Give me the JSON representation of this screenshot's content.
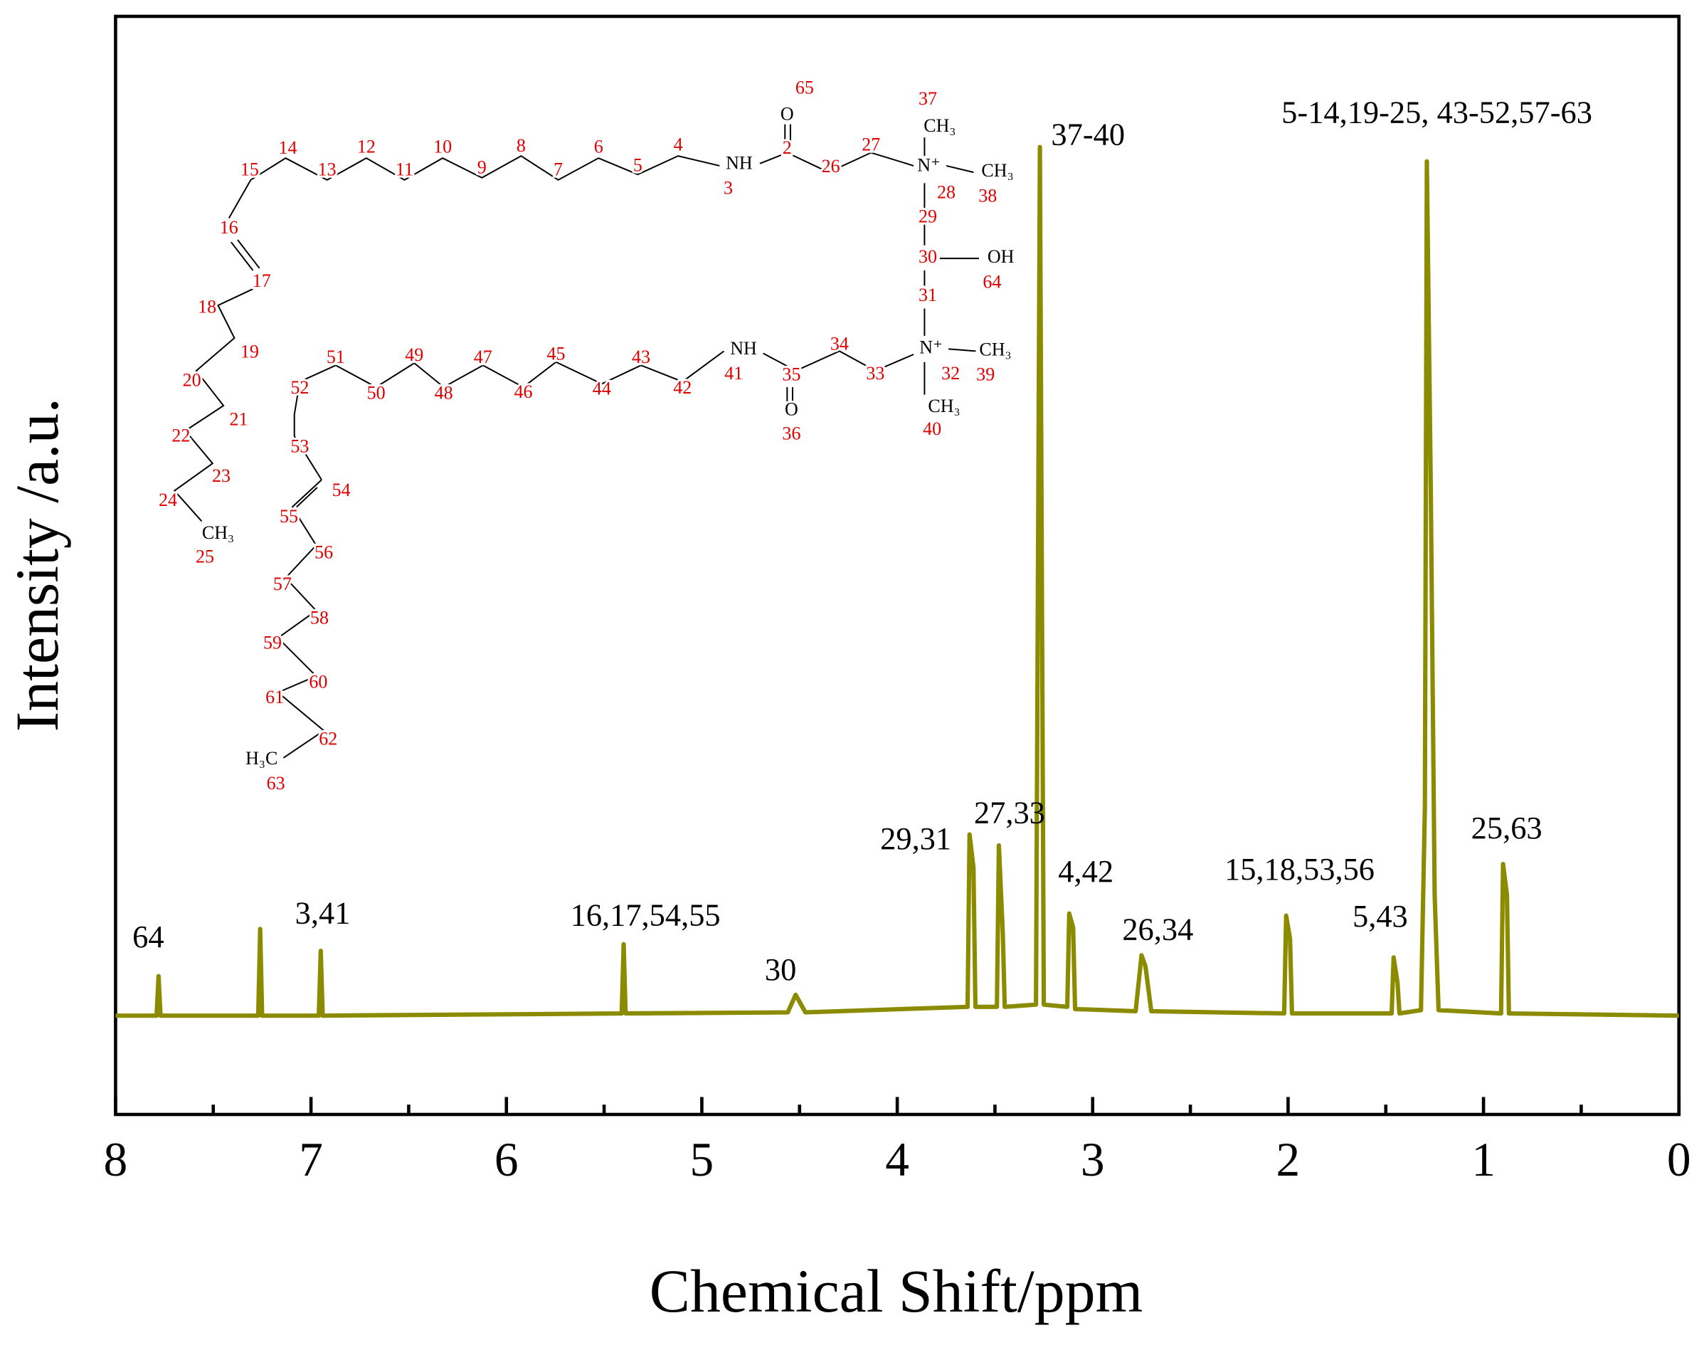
{
  "chart_data": {
    "type": "line",
    "xlabel": "Chemical Shift/ppm",
    "ylabel": "Intensity /a.u.",
    "color": "#8b8b00",
    "xlim": [
      8,
      0
    ],
    "ylim": [
      0,
      100
    ],
    "xticks": [
      8,
      7,
      6,
      5,
      4,
      3,
      2,
      1,
      0
    ],
    "xminorticks": [
      7.5,
      6.5,
      5.5,
      4.5,
      3.5,
      2.5,
      1.5,
      0.5
    ],
    "x": [
      8.0,
      7.79,
      7.78,
      7.77,
      7.27,
      7.26,
      7.25,
      6.96,
      6.95,
      6.94,
      5.41,
      5.4,
      5.39,
      4.56,
      4.52,
      4.47,
      3.64,
      3.63,
      3.61,
      3.6,
      3.49,
      3.48,
      3.46,
      3.45,
      3.29,
      3.27,
      3.25,
      3.13,
      3.12,
      3.1,
      3.09,
      2.78,
      2.75,
      2.73,
      2.7,
      2.02,
      2.01,
      1.99,
      1.98,
      1.47,
      1.46,
      1.44,
      1.43,
      1.32,
      1.3,
      1.29,
      1.27,
      1.25,
      1.23,
      0.91,
      0.9,
      0.88,
      0.87,
      0.0
    ],
    "values": [
      9.0,
      9.0,
      12.6,
      9.0,
      9.0,
      16.9,
      9.0,
      9.0,
      14.9,
      9.0,
      9.2,
      15.5,
      9.2,
      9.3,
      10.9,
      9.3,
      9.8,
      25.5,
      22.5,
      9.8,
      9.8,
      24.5,
      16.6,
      9.8,
      10.0,
      88.1,
      10.0,
      9.8,
      18.3,
      17.0,
      9.6,
      9.4,
      14.5,
      13.5,
      9.4,
      9.2,
      18.1,
      16.0,
      9.2,
      9.2,
      14.3,
      12.0,
      9.2,
      9.5,
      28.0,
      86.8,
      57.3,
      20.0,
      9.5,
      9.2,
      22.8,
      20.0,
      9.2,
      9.0
    ],
    "annotations": [
      "64",
      "3,41",
      "16,17,54,55",
      "30",
      "29,31",
      "27,33",
      "37-40",
      "4,42",
      "26,34",
      "15,18,53,56",
      "5,43",
      "5-14,19-25, 43-52,57-63",
      "25,63"
    ],
    "structure": {
      "labels": [
        "65",
        "O",
        "37",
        "CH₃",
        "15",
        "14",
        "13",
        "12",
        "11",
        "10",
        "9",
        "8",
        "7",
        "6",
        "5",
        "4",
        "NH",
        "3",
        "2",
        "26",
        "27",
        "N⁺",
        "CH₃",
        "38",
        "28",
        "29",
        "30",
        "OH",
        "64",
        "31",
        "16",
        "17",
        "18",
        "19",
        "20",
        "21",
        "22",
        "23",
        "24",
        "CH₃",
        "25",
        "51",
        "52",
        "50",
        "49",
        "48",
        "47",
        "46",
        "45",
        "44",
        "43",
        "42",
        "NH",
        "41",
        "35",
        "O",
        "36",
        "34",
        "33",
        "N⁺",
        "CH₃",
        "32",
        "39",
        "CH₃",
        "40",
        "53",
        "54",
        "55",
        "56",
        "57",
        "58",
        "59",
        "60",
        "61",
        "62",
        "H₃C",
        "63"
      ]
    }
  }
}
